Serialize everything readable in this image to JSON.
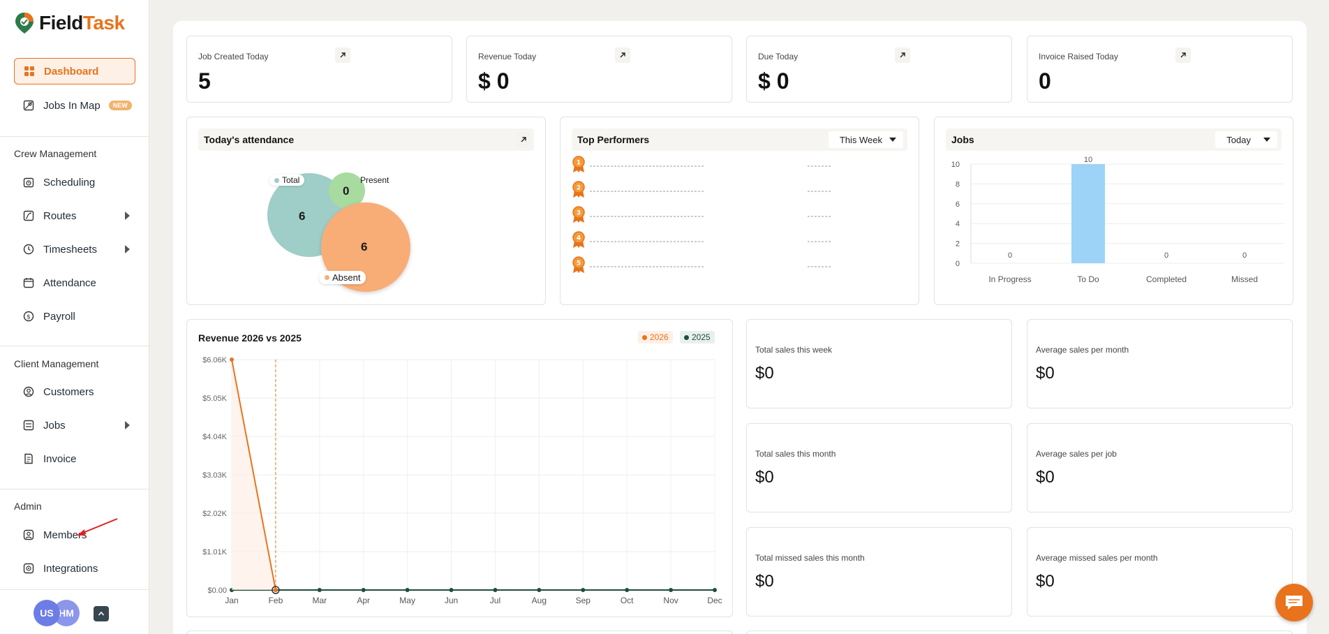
{
  "app": {
    "name_part1": "Field",
    "name_part2": "Task"
  },
  "sidebar": {
    "dashboard": "Dashboard",
    "jobs_in_map": "Jobs In Map",
    "new_badge": "NEW",
    "crew_section": "Crew Management",
    "scheduling": "Scheduling",
    "routes": "Routes",
    "timesheets": "Timesheets",
    "attendance": "Attendance",
    "payroll": "Payroll",
    "client_section": "Client Management",
    "customers": "Customers",
    "jobs": "Jobs",
    "invoice": "Invoice",
    "admin_section": "Admin",
    "members": "Members",
    "integrations": "Integrations",
    "avatar1": "US",
    "avatar2": "HM"
  },
  "stats": [
    {
      "label": "Job Created Today",
      "value": "5"
    },
    {
      "label": "Revenue Today",
      "value": "$ 0"
    },
    {
      "label": "Due Today",
      "value": "$ 0"
    },
    {
      "label": "Invoice Raised Today",
      "value": "0"
    }
  ],
  "attendance": {
    "title": "Today's attendance",
    "total_label": "Total",
    "total_value": "6",
    "present_label": "Present",
    "present_value": "0",
    "absent_label": "Absent",
    "absent_value": "6"
  },
  "performers": {
    "title": "Top Performers",
    "filter": "This Week",
    "ranks": [
      "1",
      "2",
      "3",
      "4",
      "5"
    ]
  },
  "jobs_panel": {
    "title": "Jobs",
    "filter": "Today"
  },
  "revenue_panel": {
    "title": "Revenue 2026 vs 2025",
    "legend_2026": "2026",
    "legend_2025": "2025"
  },
  "sales": [
    {
      "label": "Total sales this week",
      "value": "$0"
    },
    {
      "label": "Average sales per month",
      "value": "$0"
    },
    {
      "label": "Total sales this month",
      "value": "$0"
    },
    {
      "label": "Average sales per job",
      "value": "$0"
    },
    {
      "label": "Total missed sales this month",
      "value": "$0"
    },
    {
      "label": "Average missed sales per month",
      "value": "$0"
    }
  ],
  "colors": {
    "accent": "#e8731c",
    "teal": "#9fcdc7",
    "green": "#a8dba0",
    "peach": "#f8ac76",
    "bar": "#9dd3f7",
    "dark_series": "#1f4d3b"
  },
  "chart_data": [
    {
      "type": "bar",
      "categories": [
        "In Progress",
        "To Do",
        "Completed",
        "Missed"
      ],
      "values": [
        0,
        10,
        0,
        0
      ],
      "data_labels": [
        "0",
        "10",
        "0",
        "0"
      ],
      "ylim": [
        0,
        10
      ],
      "yticks": [
        "0",
        "2",
        "4",
        "6",
        "8",
        "10"
      ],
      "grid": true
    },
    {
      "type": "line",
      "categories": [
        "Jan",
        "Feb",
        "Mar",
        "Apr",
        "May",
        "Jun",
        "Jul",
        "Aug",
        "Sep",
        "Oct",
        "Nov",
        "Dec"
      ],
      "series": [
        {
          "name": "2026",
          "values": [
            6060,
            0,
            null,
            null,
            null,
            null,
            null,
            null,
            null,
            null,
            null,
            null
          ]
        },
        {
          "name": "2025",
          "values": [
            0,
            0,
            0,
            0,
            0,
            0,
            0,
            0,
            0,
            0,
            0,
            0
          ]
        }
      ],
      "ylim": [
        0,
        6060
      ],
      "yticks": [
        "$0.00",
        "$1.01K",
        "$2.02K",
        "$3.03K",
        "$4.04K",
        "$5.05K",
        "$6.06K"
      ],
      "grid": true,
      "highlight_category": "Feb"
    }
  ]
}
